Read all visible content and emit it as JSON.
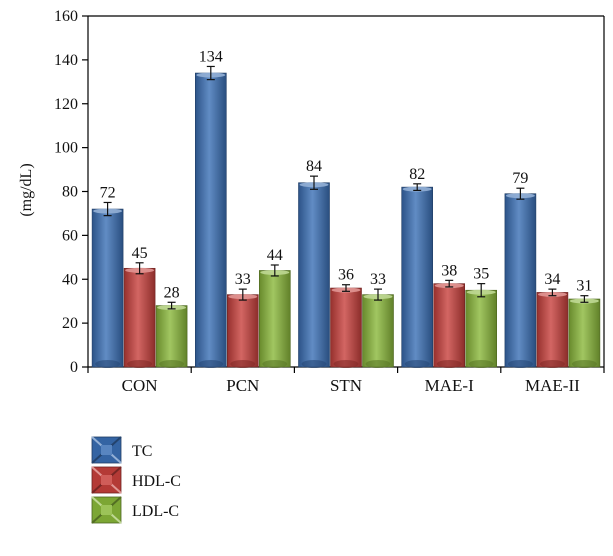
{
  "chart_data": {
    "type": "bar",
    "categories": [
      "CON",
      "PCN",
      "STN",
      "MAE-I",
      "MAE-II"
    ],
    "series": [
      {
        "name": "TC",
        "values": [
          72,
          134,
          84,
          82,
          79
        ],
        "errors": [
          3,
          3,
          3,
          1.5,
          2.5
        ],
        "color": "#3a6fb5"
      },
      {
        "name": "HDL-C",
        "values": [
          45,
          33,
          36,
          38,
          34
        ],
        "errors": [
          2.5,
          2.5,
          1.5,
          1.5,
          1.5
        ],
        "color": "#c8403c"
      },
      {
        "name": "LDL-C",
        "values": [
          28,
          44,
          33,
          35,
          31
        ],
        "errors": [
          1.5,
          2.5,
          2.5,
          3,
          1.5
        ],
        "color": "#8ab83a"
      }
    ],
    "data_labels": [
      [
        "72",
        "134",
        "84",
        "82",
        "79"
      ],
      [
        "45",
        "33",
        "36",
        "38",
        "34"
      ],
      [
        "28",
        "44",
        "33",
        "35",
        "31"
      ]
    ],
    "ylabel": "(mg/dL)",
    "ylim": [
      0,
      160
    ],
    "yticks": [
      "0",
      "20",
      "40",
      "60",
      "80",
      "100",
      "120",
      "140",
      "160"
    ],
    "legend_position": "bottom-left",
    "grid": false
  }
}
